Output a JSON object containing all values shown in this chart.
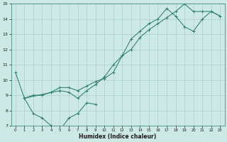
{
  "xlabel": "Humidex (Indice chaleur)",
  "xlim": [
    -0.5,
    23.5
  ],
  "ylim": [
    7,
    15
  ],
  "xticks": [
    0,
    1,
    2,
    3,
    4,
    5,
    6,
    7,
    8,
    9,
    10,
    11,
    12,
    13,
    14,
    15,
    16,
    17,
    18,
    19,
    20,
    21,
    22,
    23
  ],
  "yticks": [
    7,
    8,
    9,
    10,
    11,
    12,
    13,
    14,
    15
  ],
  "background_color": "#cce9e5",
  "grid_color": "#aacfcb",
  "line_color": "#2e7d6e",
  "line1_x": [
    0,
    1,
    2,
    3,
    4,
    5,
    6,
    7,
    8,
    9
  ],
  "line1_y": [
    10.5,
    8.8,
    7.8,
    7.5,
    7.0,
    6.7,
    7.5,
    7.8,
    8.5,
    8.4
  ],
  "line2_x": [
    1,
    2,
    3,
    4,
    5,
    6,
    7,
    8,
    9,
    10,
    11,
    12,
    13,
    14,
    15,
    16,
    17,
    18,
    19,
    20,
    21,
    22,
    23
  ],
  "line2_y": [
    8.8,
    9.0,
    9.0,
    9.2,
    9.5,
    9.5,
    9.3,
    9.6,
    9.9,
    10.1,
    10.5,
    11.6,
    12.0,
    12.8,
    13.3,
    13.7,
    14.1,
    14.5,
    15.0,
    14.5,
    14.5,
    14.5,
    14.2
  ],
  "line3_x": [
    1,
    5,
    6,
    7,
    8,
    9,
    10,
    11,
    12,
    13,
    14,
    15,
    16,
    17,
    18,
    19,
    20,
    21,
    22,
    23
  ],
  "line3_y": [
    8.8,
    9.3,
    9.2,
    8.8,
    9.3,
    9.7,
    10.2,
    11.0,
    11.6,
    12.7,
    13.2,
    13.7,
    14.0,
    14.7,
    14.2,
    13.5,
    13.2,
    14.0,
    14.5,
    14.2
  ]
}
